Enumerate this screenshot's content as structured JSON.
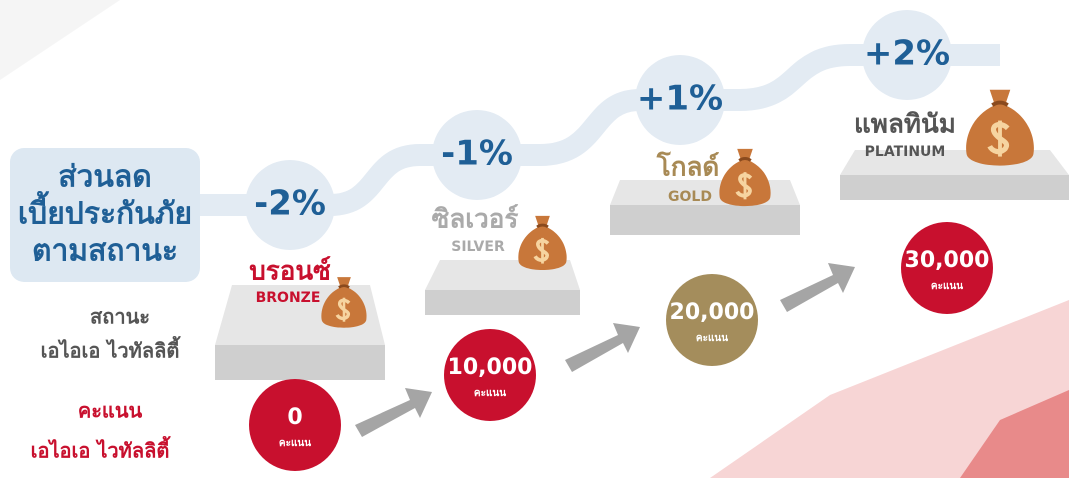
{
  "heading": {
    "lines": [
      "ส่วนลด",
      "เบี้ยประกันภัย",
      "ตามสถานะ"
    ]
  },
  "status_label": {
    "lines": [
      "สถานะ",
      "เอไอเอ ไวทัลลิตี้"
    ]
  },
  "points_label": {
    "lines": [
      "คะแนน",
      "เอไอเอ ไวทัลลิตี้"
    ]
  },
  "tiers": [
    {
      "name_th": "บรอนซ์",
      "name_en": "BRONZE",
      "discount": "-2%",
      "points": "0",
      "points_unit": "คะแนน"
    },
    {
      "name_th": "ซิลเวอร์",
      "name_en": "SILVER",
      "discount": "-1%",
      "points": "10,000",
      "points_unit": "คะแนน"
    },
    {
      "name_th": "โกลด์",
      "name_en": "GOLD",
      "discount": "+1%",
      "points": "20,000",
      "points_unit": "คะแนน"
    },
    {
      "name_th": "แพลทินัม",
      "name_en": "PLATINUM",
      "discount": "+2%",
      "points": "30,000",
      "points_unit": "คะแนน"
    }
  ]
}
